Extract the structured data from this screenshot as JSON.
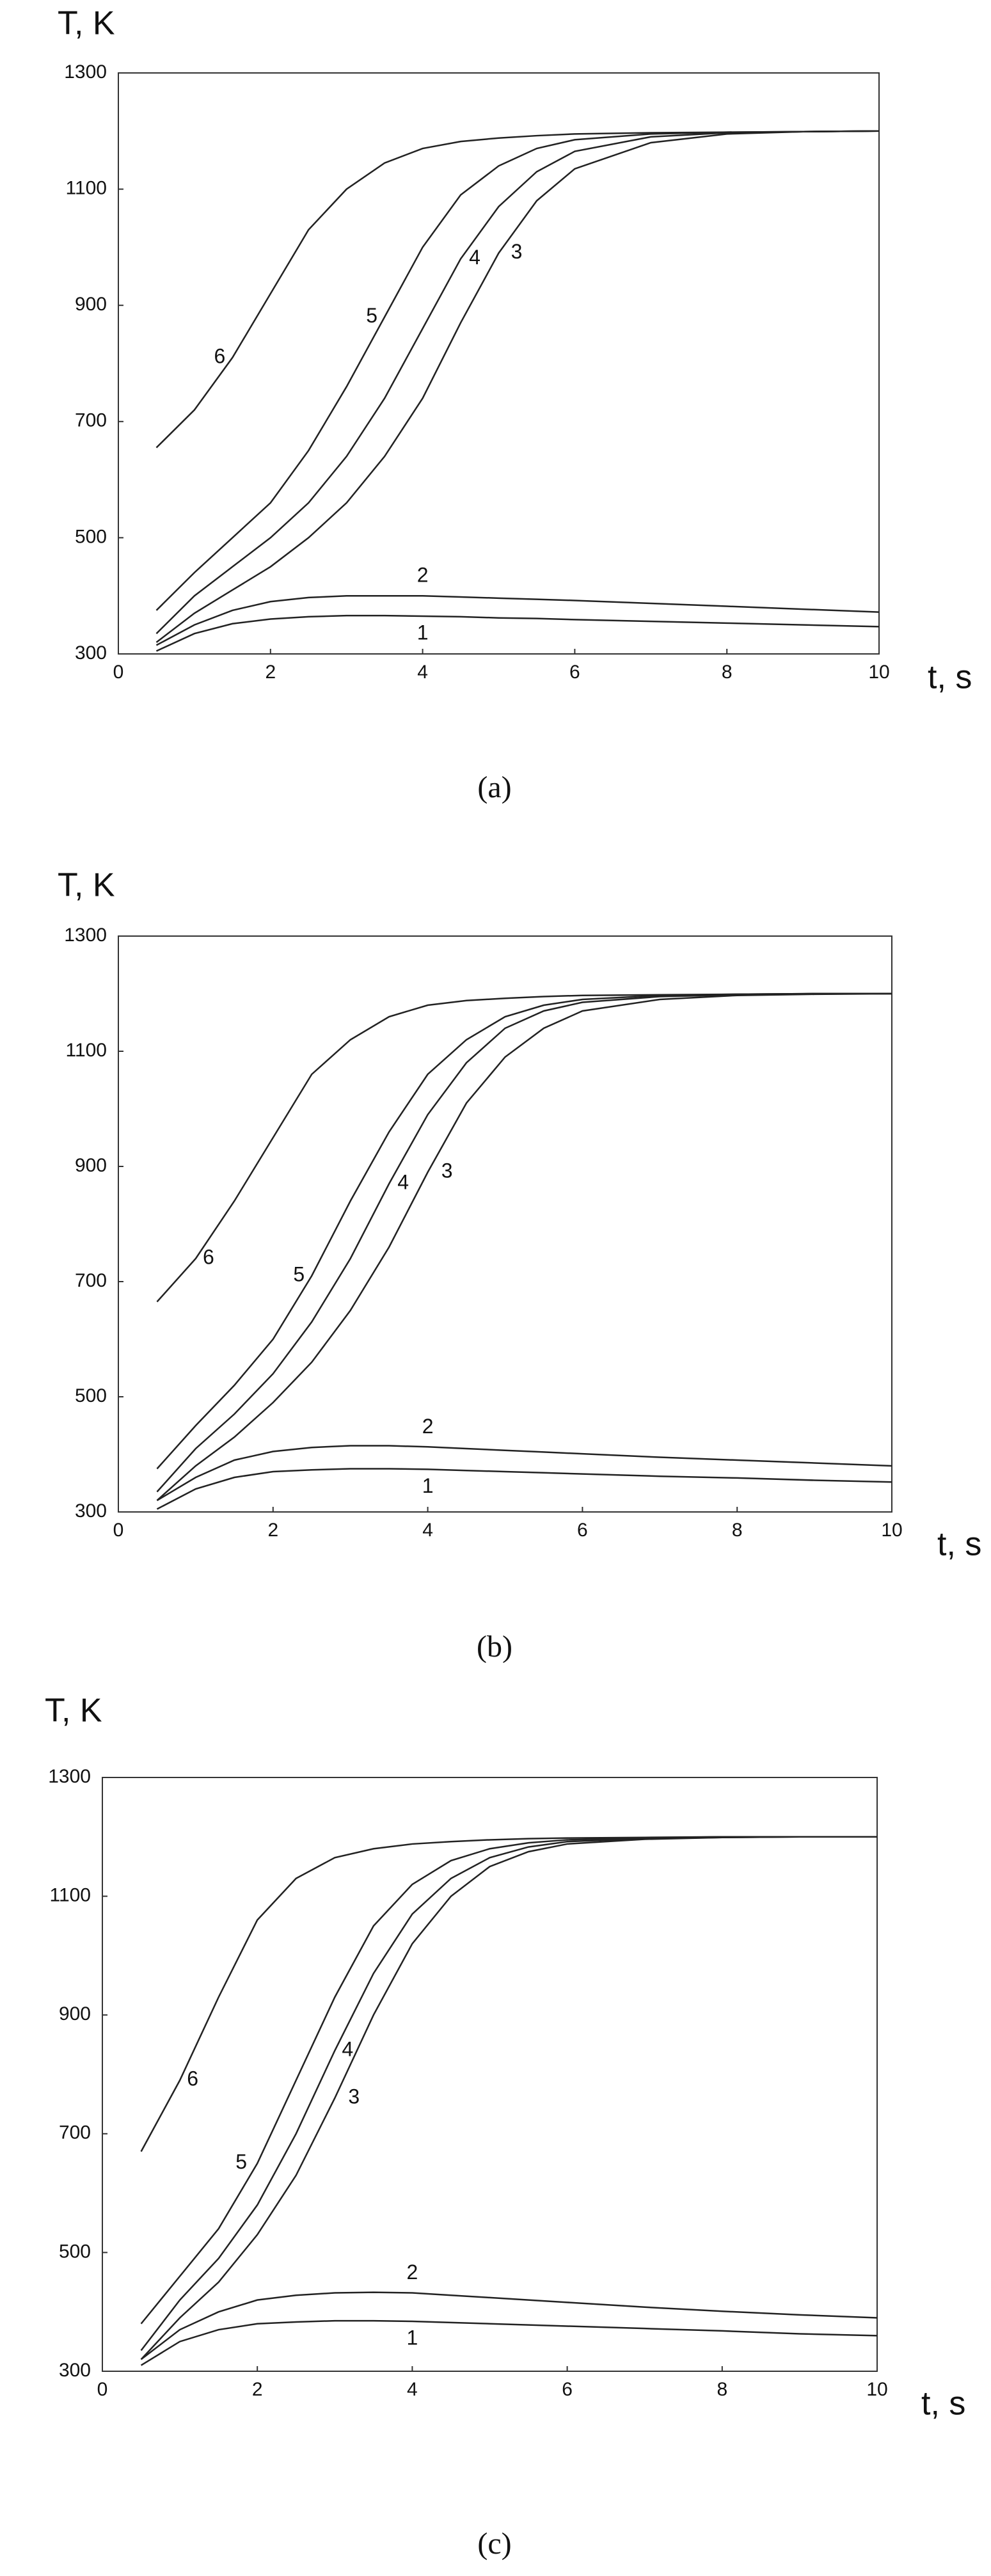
{
  "chart_data": [
    {
      "type": "line",
      "caption": "(a)",
      "y_label": "T, K",
      "x_label": "t, s",
      "xlim": [
        0,
        10
      ],
      "ylim": [
        300,
        1300
      ],
      "xticks": [
        0,
        2,
        4,
        6,
        8,
        10
      ],
      "yticks": [
        300,
        500,
        700,
        900,
        1100,
        1300
      ],
      "x": [
        0.5,
        1,
        1.5,
        2,
        2.5,
        3,
        3.5,
        4,
        4.5,
        5,
        5.5,
        6,
        7,
        8,
        9,
        10
      ],
      "series": [
        {
          "name": "1",
          "color": "#222222",
          "values": [
            305,
            335,
            352,
            360,
            364,
            366,
            366,
            365,
            364,
            362,
            361,
            359,
            356,
            353,
            350,
            347
          ]
        },
        {
          "name": "2",
          "color": "#222222",
          "values": [
            315,
            350,
            375,
            390,
            397,
            400,
            400,
            400,
            398,
            396,
            394,
            392,
            387,
            382,
            377,
            372
          ]
        },
        {
          "name": "3",
          "color": "#222222",
          "values": [
            320,
            370,
            410,
            450,
            500,
            560,
            640,
            740,
            870,
            990,
            1080,
            1135,
            1180,
            1195,
            1199,
            1200
          ]
        },
        {
          "name": "4",
          "color": "#222222",
          "values": [
            335,
            400,
            450,
            500,
            560,
            640,
            740,
            860,
            980,
            1070,
            1130,
            1165,
            1190,
            1197,
            1199,
            1200
          ]
        },
        {
          "name": "5",
          "color": "#222222",
          "values": [
            375,
            440,
            500,
            560,
            650,
            760,
            880,
            1000,
            1090,
            1140,
            1170,
            1185,
            1195,
            1198,
            1199,
            1200
          ]
        },
        {
          "name": "6",
          "color": "#222222",
          "values": [
            655,
            720,
            810,
            920,
            1030,
            1100,
            1145,
            1170,
            1182,
            1188,
            1192,
            1195,
            1197,
            1198,
            1199,
            1200
          ]
        }
      ]
    },
    {
      "type": "line",
      "caption": "(b)",
      "y_label": "T, K",
      "x_label": "t, s",
      "xlim": [
        0,
        10
      ],
      "ylim": [
        300,
        1300
      ],
      "xticks": [
        0,
        2,
        4,
        6,
        8,
        10
      ],
      "yticks": [
        300,
        500,
        700,
        900,
        1100,
        1300
      ],
      "x": [
        0.5,
        1,
        1.5,
        2,
        2.5,
        3,
        3.5,
        4,
        4.5,
        5,
        5.5,
        6,
        7,
        8,
        9,
        10
      ],
      "series": [
        {
          "name": "1",
          "color": "#222222",
          "values": [
            305,
            340,
            360,
            370,
            373,
            375,
            375,
            374,
            372,
            370,
            368,
            366,
            362,
            359,
            355,
            352
          ]
        },
        {
          "name": "2",
          "color": "#222222",
          "values": [
            320,
            360,
            390,
            405,
            412,
            415,
            415,
            413,
            410,
            407,
            404,
            401,
            395,
            390,
            385,
            380
          ]
        },
        {
          "name": "3",
          "color": "#222222",
          "values": [
            320,
            380,
            430,
            490,
            560,
            650,
            760,
            890,
            1010,
            1090,
            1140,
            1170,
            1190,
            1197,
            1199,
            1200
          ]
        },
        {
          "name": "4",
          "color": "#222222",
          "values": [
            335,
            410,
            470,
            540,
            630,
            740,
            870,
            990,
            1080,
            1140,
            1170,
            1185,
            1195,
            1198,
            1200,
            1200
          ]
        },
        {
          "name": "5",
          "color": "#222222",
          "values": [
            375,
            450,
            520,
            600,
            710,
            840,
            960,
            1060,
            1120,
            1160,
            1180,
            1190,
            1197,
            1199,
            1200,
            1200
          ]
        },
        {
          "name": "6",
          "color": "#222222",
          "values": [
            665,
            740,
            840,
            950,
            1060,
            1120,
            1160,
            1180,
            1188,
            1192,
            1195,
            1197,
            1198,
            1199,
            1200,
            1200
          ]
        }
      ]
    },
    {
      "type": "line",
      "caption": "(c)",
      "y_label": "T, K",
      "x_label": "t, s",
      "xlim": [
        0,
        10
      ],
      "ylim": [
        300,
        1300
      ],
      "xticks": [
        0,
        2,
        4,
        6,
        8,
        10
      ],
      "yticks": [
        300,
        500,
        700,
        900,
        1100,
        1300
      ],
      "x": [
        0.5,
        1,
        1.5,
        2,
        2.5,
        3,
        3.5,
        4,
        4.5,
        5,
        5.5,
        6,
        7,
        8,
        9,
        10
      ],
      "series": [
        {
          "name": "1",
          "color": "#222222",
          "values": [
            310,
            350,
            370,
            380,
            383,
            385,
            385,
            384,
            382,
            380,
            378,
            376,
            372,
            368,
            363,
            360
          ]
        },
        {
          "name": "2",
          "color": "#222222",
          "values": [
            320,
            370,
            400,
            420,
            428,
            432,
            433,
            432,
            428,
            424,
            420,
            416,
            408,
            401,
            395,
            390
          ]
        },
        {
          "name": "3",
          "color": "#222222",
          "values": [
            320,
            390,
            450,
            530,
            630,
            760,
            900,
            1020,
            1100,
            1150,
            1175,
            1188,
            1196,
            1199,
            1200,
            1200
          ]
        },
        {
          "name": "4",
          "color": "#222222",
          "values": [
            335,
            420,
            490,
            580,
            700,
            840,
            970,
            1070,
            1130,
            1165,
            1183,
            1192,
            1197,
            1199,
            1200,
            1200
          ]
        },
        {
          "name": "5",
          "color": "#222222",
          "values": [
            380,
            460,
            540,
            650,
            790,
            930,
            1050,
            1120,
            1160,
            1180,
            1190,
            1195,
            1198,
            1200,
            1200,
            1200
          ]
        },
        {
          "name": "6",
          "color": "#222222",
          "values": [
            670,
            790,
            930,
            1060,
            1130,
            1165,
            1180,
            1188,
            1192,
            1195,
            1197,
            1198,
            1199,
            1200,
            1200,
            1200
          ]
        }
      ]
    }
  ]
}
